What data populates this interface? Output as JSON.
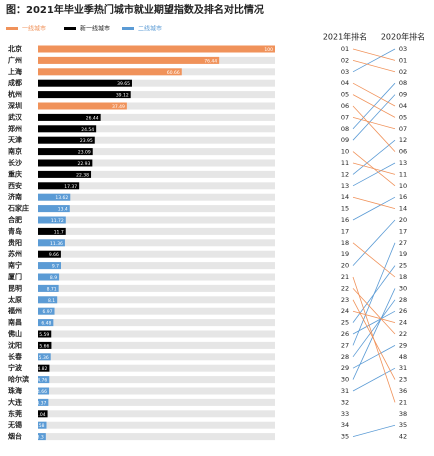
{
  "chart_data": {
    "type": "bar",
    "title": "图：2021年毕业季热门城市就业期望指数及排名对比情况",
    "legend": [
      {
        "name": "一线城市",
        "color": "#f0925a"
      },
      {
        "name": "新一线城市",
        "color": "#000000"
      },
      {
        "name": "二线城市",
        "color": "#5b9bd5"
      }
    ],
    "categories": [
      "北京",
      "广州",
      "上海",
      "成都",
      "杭州",
      "深圳",
      "武汉",
      "郑州",
      "天津",
      "南京",
      "长沙",
      "重庆",
      "西安",
      "济南",
      "石家庄",
      "合肥",
      "青岛",
      "贵阳",
      "苏州",
      "南宁",
      "厦门",
      "昆明",
      "太原",
      "福州",
      "南昌",
      "佛山",
      "沈阳",
      "长春",
      "宁波",
      "哈尔滨",
      "珠海",
      "大连",
      "东莞",
      "无锡",
      "烟台"
    ],
    "bar_groups": [
      0,
      0,
      0,
      1,
      1,
      0,
      1,
      1,
      1,
      1,
      1,
      1,
      1,
      2,
      2,
      2,
      1,
      2,
      1,
      2,
      2,
      2,
      2,
      2,
      2,
      1,
      1,
      2,
      1,
      2,
      2,
      2,
      1,
      2,
      2
    ],
    "values": [
      100,
      76.44,
      60.66,
      39.65,
      39.12,
      37.49,
      26.44,
      24.54,
      23.95,
      23.09,
      22.93,
      22.38,
      17.37,
      13.62,
      13.4,
      11.72,
      11.7,
      11.36,
      9.66,
      9.7,
      8.9,
      8.71,
      8.1,
      6.97,
      6.48,
      5.59,
      5.66,
      5.36,
      4.82,
      4.76,
      4.66,
      4.37,
      4.04,
      3.58,
      3.3
    ],
    "xlim": [
      0,
      100
    ],
    "track_color": "#e6e6e6",
    "rank_2021_label": "2021年排名",
    "rank_2020_label": "2020年排名",
    "rank_2021": [
      "01",
      "02",
      "03",
      "04",
      "05",
      "06",
      "07",
      "08",
      "09",
      "10",
      "11",
      "12",
      "13",
      "14",
      "15",
      "16",
      "17",
      "18",
      "19",
      "20",
      "21",
      "22",
      "23",
      "24",
      "25",
      "26",
      "27",
      "28",
      "29",
      "30",
      "31",
      "32",
      "33",
      "34",
      "35"
    ],
    "rank_2020": [
      "03",
      "01",
      "02",
      "08",
      "09",
      "04",
      "05",
      "07",
      "12",
      "06",
      "13",
      "11",
      "10",
      "16",
      "14",
      "20",
      "17",
      "27",
      "19",
      "25",
      "18",
      "30",
      "28",
      "26",
      "24",
      "22",
      "29",
      "48",
      "31",
      "23",
      "36",
      "21",
      "38",
      "35",
      "42"
    ],
    "up_color": "#5b9bd5",
    "down_color": "#f0925a"
  }
}
